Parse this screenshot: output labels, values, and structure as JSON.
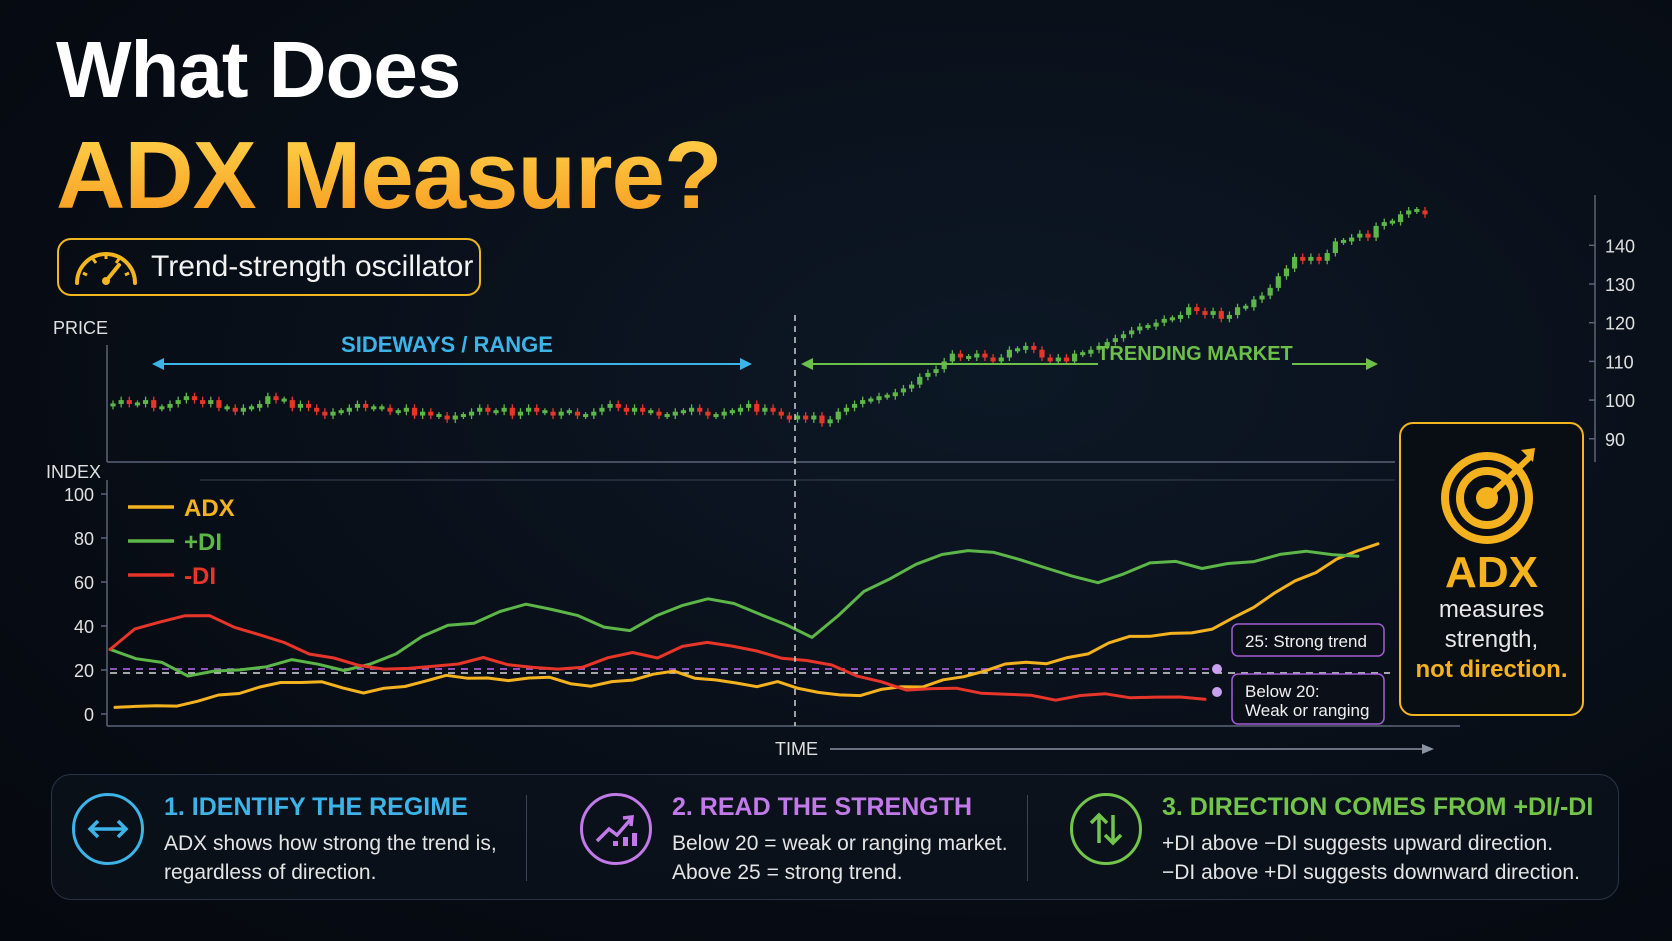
{
  "title_line1": "What Does",
  "title_line2": "ADX Measure?",
  "badge": {
    "icon": "speedometer-icon",
    "text": "Trend-strength oscillator"
  },
  "colors": {
    "accent": "#f5b21f",
    "adx": "#f5b21f",
    "plus_di": "#5cb648",
    "minus_di": "#e8352a",
    "sideways": "#3cb4e8",
    "trending": "#6cc04a",
    "threshold": "#a25cd6"
  },
  "chart_data": [
    {
      "type": "candlestick",
      "title": "",
      "ylabel": "PRICE",
      "ylim": [
        84,
        153
      ],
      "yticks": [
        90,
        100,
        110,
        120,
        130,
        140
      ],
      "annotations": {
        "sideways": "SIDEWAYS / RANGE",
        "trending": "TRENDING MARKET"
      },
      "close": [
        99,
        100,
        99,
        99,
        100,
        98,
        98,
        99,
        100,
        101,
        100,
        99,
        100,
        98,
        98,
        97,
        98,
        98,
        99,
        101,
        100,
        100,
        98,
        99,
        98,
        97,
        96,
        97,
        97,
        98,
        99,
        98,
        98,
        98,
        97,
        97,
        98,
        96,
        97,
        96,
        96,
        95,
        96,
        96,
        97,
        98,
        97,
        97,
        98,
        96,
        97,
        98,
        97,
        97,
        96,
        97,
        97,
        96,
        96,
        97,
        98,
        99,
        98,
        97,
        98,
        97,
        97,
        96,
        96,
        97,
        97,
        98,
        97,
        96,
        96,
        97,
        97,
        98,
        99,
        97,
        98,
        97,
        96,
        95,
        96,
        95,
        96,
        94,
        95,
        97,
        98,
        99,
        100,
        100,
        101,
        101,
        102,
        103,
        104,
        106,
        107,
        108,
        110,
        112,
        111,
        111,
        112,
        111,
        110,
        111,
        113,
        113,
        114,
        113,
        111,
        110,
        111,
        110,
        112,
        112,
        113,
        114,
        115,
        116,
        117,
        118,
        119,
        119,
        120,
        121,
        121,
        122,
        124,
        123,
        122,
        123,
        121,
        122,
        124,
        124,
        126,
        127,
        129,
        132,
        134,
        137,
        136,
        137,
        136,
        138,
        141,
        141,
        142,
        143,
        142,
        145,
        146,
        146,
        148,
        149,
        149,
        148
      ]
    },
    {
      "type": "line",
      "title": "",
      "ylabel": "INDEX",
      "xlabel": "TIME",
      "ylim": [
        0,
        100
      ],
      "yticks": [
        0,
        20,
        40,
        60,
        80,
        100
      ],
      "series": [
        {
          "name": "ADX",
          "values": [
            3,
            4,
            3,
            4,
            6,
            8,
            10,
            12,
            14,
            15,
            14,
            12,
            10,
            11,
            13,
            15,
            17,
            17,
            16,
            15,
            17,
            16,
            14,
            13,
            14,
            16,
            18,
            19,
            17,
            15,
            14,
            13,
            14,
            12,
            10,
            8,
            9,
            11,
            12,
            13,
            15,
            17,
            20,
            22,
            24,
            23,
            25,
            28,
            32,
            35,
            36,
            36,
            37,
            39,
            43,
            49,
            55,
            60,
            65,
            70,
            74,
            78
          ]
        },
        {
          "name": "+DI",
          "values": [
            30,
            25,
            23,
            18,
            19,
            20,
            22,
            24,
            23,
            20,
            22,
            28,
            35,
            40,
            42,
            46,
            50,
            48,
            44,
            40,
            38,
            44,
            50,
            52,
            50,
            46,
            40,
            35,
            45,
            55,
            62,
            68,
            72,
            75,
            73,
            70,
            67,
            62,
            60,
            64,
            68,
            70,
            66,
            68,
            70,
            72,
            74,
            73,
            71
          ]
        },
        {
          "name": "-DI",
          "values": [
            30,
            38,
            42,
            45,
            44,
            40,
            36,
            32,
            28,
            25,
            22,
            21,
            20,
            22,
            23,
            25,
            23,
            21,
            20,
            22,
            25,
            28,
            26,
            30,
            33,
            31,
            28,
            26,
            24,
            22,
            18,
            14,
            11,
            12,
            11,
            10,
            9,
            8,
            7,
            8,
            9,
            8,
            7,
            8,
            7
          ]
        }
      ],
      "thresholds": [
        {
          "value": 25,
          "label": "25: Strong trend"
        },
        {
          "value": 20,
          "label_line1": "Below 20:",
          "label_line2": "Weak or ranging"
        }
      ]
    }
  ],
  "target_box": {
    "icon": "target-icon",
    "title": "ADX",
    "line1": "measures",
    "line2": "strength,",
    "highlight": "not direction."
  },
  "cards": [
    {
      "icon": "double-arrow-icon",
      "title": "1. IDENTIFY THE REGIME",
      "text1": "ADX shows how strong the trend is,",
      "text2": "regardless of direction.",
      "color": "#3cb4e8"
    },
    {
      "icon": "trend-chart-icon",
      "title": "2. READ THE STRENGTH",
      "text1": "Below 20 = weak or ranging market.",
      "text2": "Above 25 = strong trend.",
      "color": "#c17ae8"
    },
    {
      "icon": "up-down-arrows-icon",
      "title": "3. DIRECTION COMES FROM +DI/-DI",
      "text1": "+DI above −DI suggests upward direction.",
      "text2": "−DI above +DI suggests downward direction.",
      "color": "#72c44a"
    }
  ]
}
